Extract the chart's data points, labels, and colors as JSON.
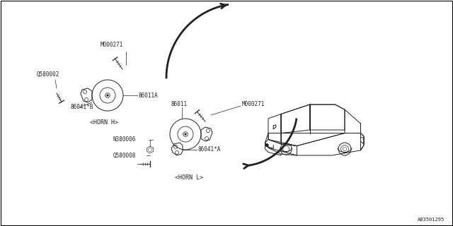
{
  "bg_color": "#ffffff",
  "border_color": "#000000",
  "fig_width": 6.4,
  "fig_height": 3.2,
  "dpi": 100,
  "part_number_bottom": "A83501295",
  "labels": {
    "M000271_top": "M000271",
    "Q580002": "Q580002",
    "86011A": "86011A",
    "86041B": "86041*B",
    "HORN_H": "<HORN H>",
    "M000271_bot": "M000271",
    "86011": "86011",
    "N380006": "N380006",
    "Q580008": "Q580008",
    "86041A": "86041*A",
    "HORN_L": "<HORN L>"
  },
  "text_color": "#222222",
  "line_color": "#222222",
  "font_size_label": 6.0,
  "font_size_part": 5.5
}
